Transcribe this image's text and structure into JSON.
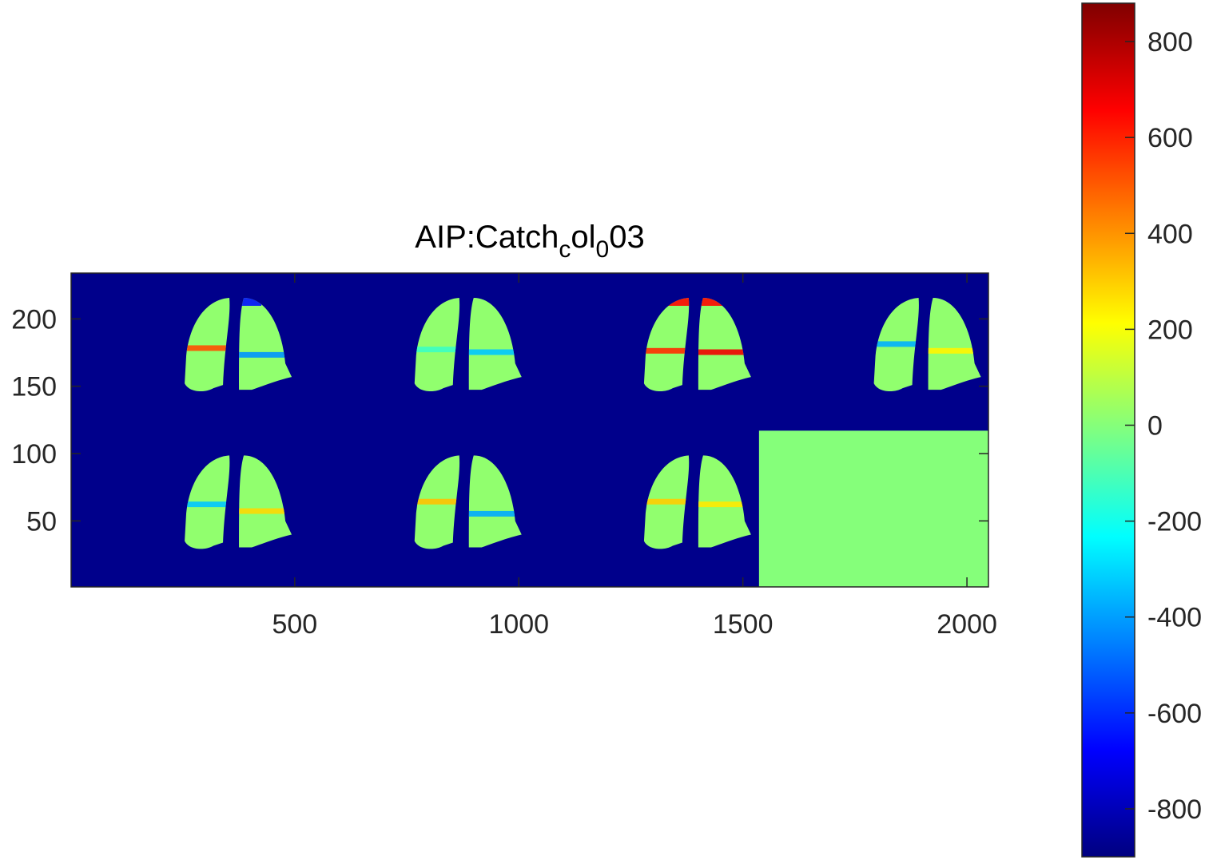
{
  "chart_data": {
    "type": "heatmap",
    "title": {
      "parts": [
        {
          "text": "AIP:Catch",
          "sub": false
        },
        {
          "text": "c",
          "sub": true
        },
        {
          "text": "ol",
          "sub": false
        },
        {
          "text": "0",
          "sub": true
        },
        {
          "text": "03",
          "sub": false
        }
      ]
    },
    "xlabel": "",
    "ylabel": "",
    "xlim": [
      1,
      2048
    ],
    "ylim": [
      1,
      234
    ],
    "y_direction": "normal",
    "x_ticks": [
      500,
      1000,
      1500,
      2000
    ],
    "x_tick_labels": [
      "500",
      "1000",
      "1500",
      "2000"
    ],
    "y_ticks": [
      50,
      100,
      150,
      200
    ],
    "y_tick_labels": [
      "50",
      "100",
      "150",
      "200"
    ],
    "background_value": -880,
    "colormap": "jet",
    "clim": [
      -900,
      880
    ],
    "colorbar": {
      "ticks": [
        -800,
        -600,
        -400,
        -200,
        0,
        200,
        400,
        600,
        800
      ],
      "tick_labels": [
        "-800",
        "-600",
        "-400",
        "-200",
        "0",
        "200",
        "400",
        "600",
        "800"
      ],
      "placement": "right"
    },
    "panel_value_typical": 20,
    "filled_block": {
      "x_range": [
        1536,
        2048
      ],
      "y_range": [
        0,
        117
      ],
      "value": 0
    },
    "panels": [
      {
        "row": "top",
        "x_center": 372,
        "y_range": [
          145,
          218
        ],
        "bands": [
          {
            "side": "left",
            "y": 178,
            "value": 520
          },
          {
            "side": "right",
            "y": 173,
            "value": -420
          },
          {
            "side": "right-apex",
            "y": 212,
            "value": -650
          }
        ]
      },
      {
        "row": "top",
        "x_center": 885,
        "y_range": [
          145,
          218
        ],
        "bands": [
          {
            "side": "right",
            "y": 175,
            "value": -330
          },
          {
            "side": "left",
            "y": 177,
            "value": -130
          }
        ]
      },
      {
        "row": "top",
        "x_center": 1397,
        "y_range": [
          145,
          218
        ],
        "bands": [
          {
            "side": "left",
            "y": 176,
            "value": 580
          },
          {
            "side": "right",
            "y": 175,
            "value": 680
          },
          {
            "side": "apex",
            "y": 212,
            "value": 650
          }
        ]
      },
      {
        "row": "top",
        "x_center": 1910,
        "y_range": [
          145,
          218
        ],
        "bands": [
          {
            "side": "left",
            "y": 181,
            "value": -370
          },
          {
            "side": "right",
            "y": 176,
            "value": 230
          }
        ]
      },
      {
        "row": "bottom",
        "x_center": 372,
        "y_range": [
          28,
          101
        ],
        "bands": [
          {
            "side": "left",
            "y": 62,
            "value": -330
          },
          {
            "side": "right",
            "y": 57,
            "value": 280
          }
        ]
      },
      {
        "row": "bottom",
        "x_center": 885,
        "y_range": [
          28,
          101
        ],
        "bands": [
          {
            "side": "left",
            "y": 64,
            "value": 320
          },
          {
            "side": "right",
            "y": 55,
            "value": -380
          }
        ]
      },
      {
        "row": "bottom",
        "x_center": 1397,
        "y_range": [
          28,
          101
        ],
        "bands": [
          {
            "side": "left",
            "y": 64,
            "value": 300
          },
          {
            "side": "right",
            "y": 62,
            "value": 250
          }
        ]
      }
    ],
    "grid": false
  }
}
